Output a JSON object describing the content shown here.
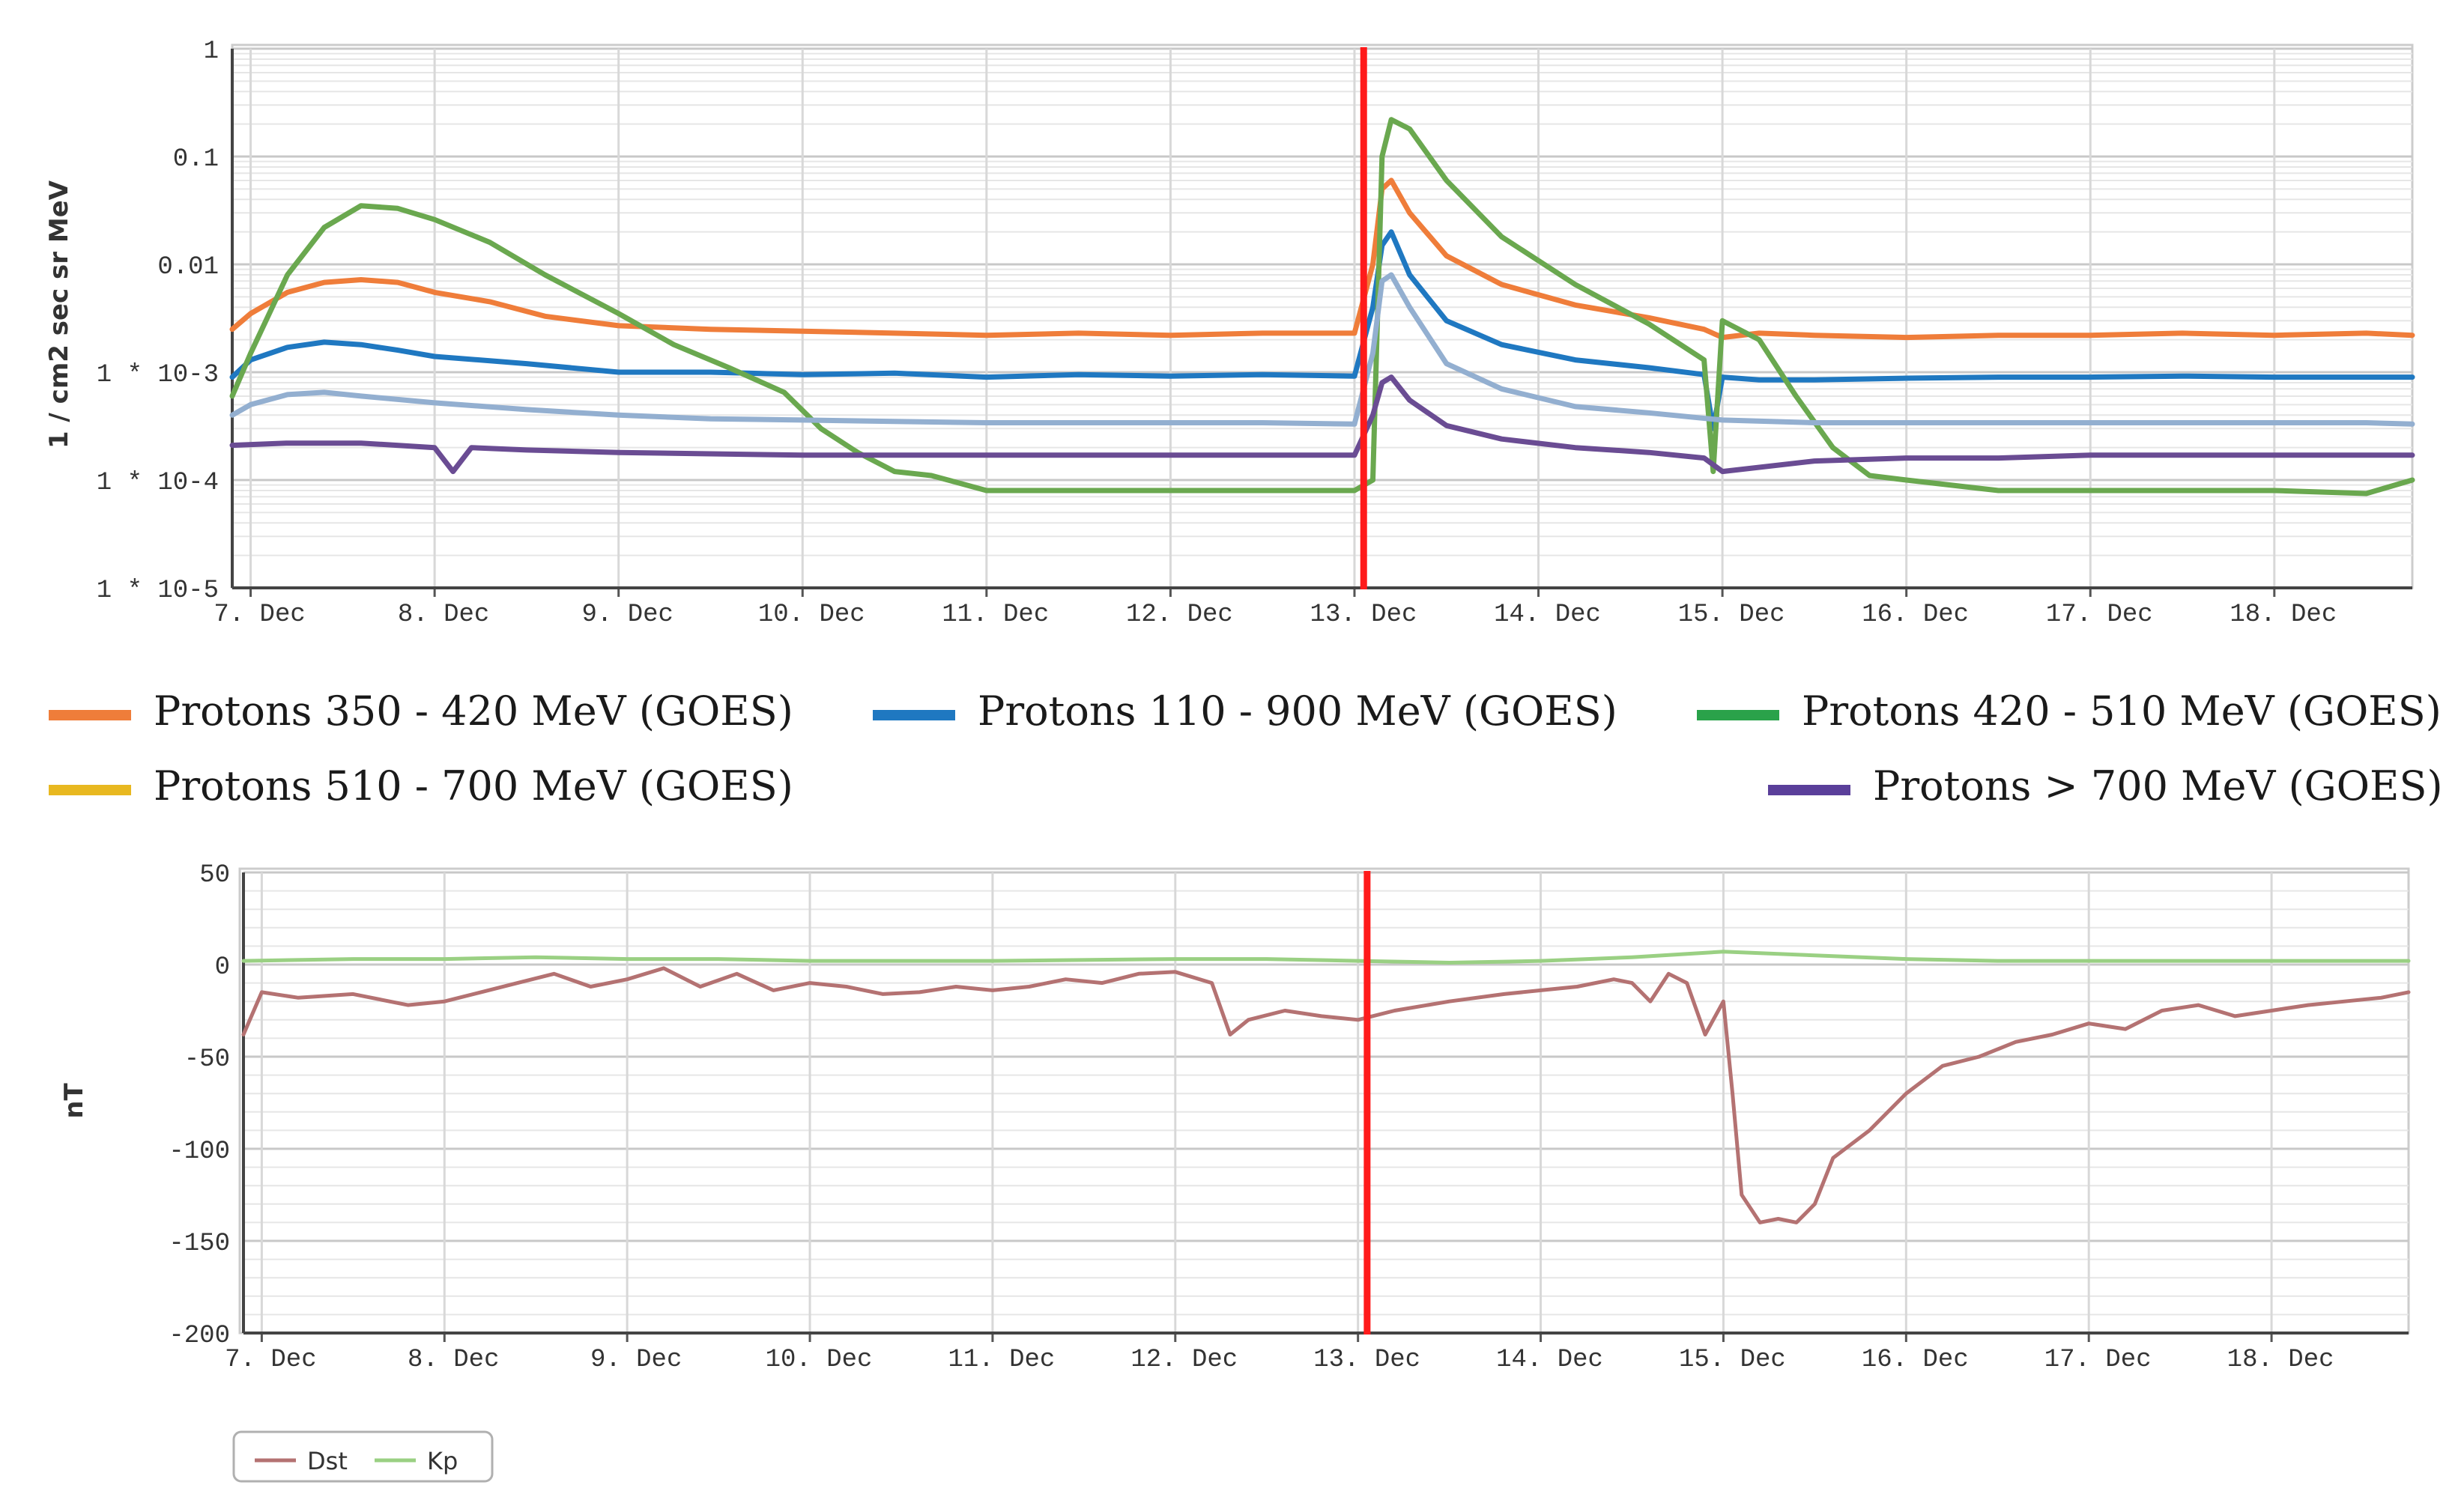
{
  "chart_data": [
    {
      "type": "line",
      "title": "",
      "ylabel": "1 / cm2 sec sr MeV",
      "y_scale": "log",
      "ylim": [
        1e-05,
        1
      ],
      "y_ticks": [
        "1",
        "0.1",
        "0.01",
        "1 * 10-3",
        "1 * 10-4",
        "1 * 10-5"
      ],
      "y_tick_values": [
        1,
        0.1,
        0.01,
        0.001,
        0.0001,
        1e-05
      ],
      "xlim": [
        6.9,
        18.75
      ],
      "x_ticks": [
        "7. Dec",
        "8. Dec",
        "9. Dec",
        "10. Dec",
        "11. Dec",
        "12. Dec",
        "13. Dec",
        "14. Dec",
        "15. Dec",
        "16. Dec",
        "17. Dec",
        "18. Dec"
      ],
      "x_tick_values": [
        7,
        8,
        9,
        10,
        11,
        12,
        13,
        14,
        15,
        16,
        17,
        18
      ],
      "marker_x": 13.05,
      "marker_color": "#ff1a1a",
      "legend_position": "bottom",
      "series": [
        {
          "name": "Protons 350 - 420 MeV (GOES)",
          "color": "#ef7d3a",
          "x": [
            6.9,
            7.0,
            7.2,
            7.4,
            7.6,
            7.8,
            8.0,
            8.3,
            8.6,
            9.0,
            9.5,
            10.0,
            10.5,
            11.0,
            11.5,
            12.0,
            12.5,
            13.0,
            13.1,
            13.15,
            13.2,
            13.3,
            13.5,
            13.8,
            14.2,
            14.6,
            14.9,
            15.0,
            15.2,
            15.5,
            16.0,
            16.5,
            17.0,
            17.5,
            18.0,
            18.5,
            18.75
          ],
          "y": [
            0.0025,
            0.0035,
            0.0055,
            0.0068,
            0.0072,
            0.0068,
            0.0055,
            0.0045,
            0.0033,
            0.0027,
            0.0025,
            0.0024,
            0.0023,
            0.0022,
            0.0023,
            0.0022,
            0.0023,
            0.0023,
            0.01,
            0.05,
            0.06,
            0.03,
            0.012,
            0.0065,
            0.0042,
            0.0032,
            0.0025,
            0.0021,
            0.0023,
            0.0022,
            0.0021,
            0.0022,
            0.0022,
            0.0023,
            0.0022,
            0.0023,
            0.0022
          ]
        },
        {
          "name": "Protons 110 - 900 MeV (GOES)",
          "color": "#1f78c1",
          "x": [
            6.9,
            7.0,
            7.2,
            7.4,
            7.6,
            7.8,
            8.0,
            8.5,
            9.0,
            9.5,
            10.0,
            10.5,
            11.0,
            11.5,
            12.0,
            12.5,
            13.0,
            13.1,
            13.15,
            13.2,
            13.3,
            13.5,
            13.8,
            14.2,
            14.6,
            14.9,
            14.95,
            15.0,
            15.2,
            15.5,
            16.0,
            16.5,
            17.0,
            17.5,
            18.0,
            18.5,
            18.75
          ],
          "y": [
            0.0009,
            0.0013,
            0.0017,
            0.0019,
            0.0018,
            0.0016,
            0.0014,
            0.0012,
            0.001,
            0.001,
            0.00095,
            0.00098,
            0.0009,
            0.00095,
            0.00092,
            0.00095,
            0.00092,
            0.004,
            0.015,
            0.02,
            0.008,
            0.003,
            0.0018,
            0.0013,
            0.0011,
            0.00095,
            0.0003,
            0.0009,
            0.00085,
            0.00085,
            0.00088,
            0.0009,
            0.0009,
            0.00092,
            0.0009,
            0.0009,
            0.0009
          ]
        },
        {
          "name": "Protons 420 - 510 MeV (GOES)",
          "color": "#6aa84f",
          "x": [
            6.9,
            7.0,
            7.2,
            7.4,
            7.6,
            7.8,
            8.0,
            8.3,
            8.6,
            9.0,
            9.3,
            9.6,
            9.9,
            10.1,
            10.3,
            10.5,
            10.7,
            11.0,
            11.5,
            12.0,
            12.5,
            13.0,
            13.1,
            13.15,
            13.2,
            13.3,
            13.5,
            13.8,
            14.2,
            14.6,
            14.9,
            14.95,
            15.0,
            15.2,
            15.4,
            15.6,
            15.8,
            16.0,
            16.5,
            17.0,
            17.5,
            18.0,
            18.5,
            18.75
          ],
          "y": [
            0.0006,
            0.0015,
            0.008,
            0.022,
            0.035,
            0.033,
            0.026,
            0.016,
            0.008,
            0.0035,
            0.0018,
            0.0011,
            0.00065,
            0.0003,
            0.00018,
            0.00012,
            0.00011,
            8e-05,
            8e-05,
            8e-05,
            8e-05,
            8e-05,
            0.0001,
            0.1,
            0.22,
            0.18,
            0.06,
            0.018,
            0.0065,
            0.0028,
            0.0013,
            0.00012,
            0.003,
            0.002,
            0.0006,
            0.0002,
            0.00011,
            0.0001,
            8e-05,
            8e-05,
            8e-05,
            8e-05,
            7.5e-05,
            0.0001
          ]
        },
        {
          "name": "Protons 510 - 700 MeV (GOES)",
          "color": "#93afd0",
          "x": [
            6.9,
            7.0,
            7.2,
            7.4,
            7.6,
            8.0,
            8.5,
            9.0,
            9.5,
            10.0,
            10.5,
            11.0,
            11.5,
            12.0,
            12.5,
            13.0,
            13.1,
            13.15,
            13.2,
            13.3,
            13.5,
            13.8,
            14.2,
            14.6,
            15.0,
            15.5,
            16.0,
            16.5,
            17.0,
            17.5,
            18.0,
            18.5,
            18.75
          ],
          "y": [
            0.0004,
            0.0005,
            0.00062,
            0.00065,
            0.0006,
            0.00052,
            0.00045,
            0.0004,
            0.00037,
            0.00036,
            0.00035,
            0.00034,
            0.00034,
            0.00034,
            0.00034,
            0.00033,
            0.0015,
            0.007,
            0.008,
            0.004,
            0.0012,
            0.0007,
            0.00048,
            0.00042,
            0.00036,
            0.00034,
            0.00034,
            0.00034,
            0.00034,
            0.00034,
            0.00034,
            0.00034,
            0.00033
          ]
        },
        {
          "name": "Protons > 700 MeV (GOES)",
          "color": "#6a4c93",
          "x": [
            6.9,
            7.2,
            7.6,
            8.0,
            8.1,
            8.2,
            8.5,
            9.0,
            10.0,
            11.0,
            12.0,
            13.0,
            13.1,
            13.15,
            13.2,
            13.3,
            13.5,
            13.8,
            14.2,
            14.6,
            14.9,
            15.0,
            15.5,
            16.0,
            16.5,
            17.0,
            17.5,
            18.0,
            18.5,
            18.75
          ],
          "y": [
            0.00021,
            0.00022,
            0.00022,
            0.0002,
            0.00012,
            0.0002,
            0.00019,
            0.00018,
            0.00017,
            0.00017,
            0.00017,
            0.00017,
            0.0004,
            0.0008,
            0.0009,
            0.00055,
            0.00032,
            0.00024,
            0.0002,
            0.00018,
            0.00016,
            0.00012,
            0.00015,
            0.00016,
            0.00016,
            0.00017,
            0.00017,
            0.00017,
            0.00017,
            0.00017
          ]
        }
      ]
    },
    {
      "type": "line",
      "title": "",
      "ylabel": "nT",
      "ylim": [
        -200,
        50
      ],
      "y_ticks": [
        "50",
        "0",
        "-50",
        "-100",
        "-150",
        "-200"
      ],
      "y_tick_values": [
        50,
        0,
        -50,
        -100,
        -150,
        -200
      ],
      "xlim": [
        6.9,
        18.75
      ],
      "x_ticks": [
        "7. Dec",
        "8. Dec",
        "9. Dec",
        "10. Dec",
        "11. Dec",
        "12. Dec",
        "13. Dec",
        "14. Dec",
        "15. Dec",
        "16. Dec",
        "17. Dec",
        "18. Dec"
      ],
      "x_tick_values": [
        7,
        8,
        9,
        10,
        11,
        12,
        13,
        14,
        15,
        16,
        17,
        18
      ],
      "marker_x": 13.05,
      "marker_color": "#ff1a1a",
      "legend_position": "bottom-left",
      "series": [
        {
          "name": "Dst",
          "color": "#b47272",
          "x": [
            6.9,
            7.0,
            7.2,
            7.5,
            7.8,
            8.0,
            8.2,
            8.4,
            8.6,
            8.8,
            9.0,
            9.2,
            9.4,
            9.6,
            9.8,
            10.0,
            10.2,
            10.4,
            10.6,
            10.8,
            11.0,
            11.2,
            11.4,
            11.6,
            11.8,
            12.0,
            12.2,
            12.3,
            12.4,
            12.6,
            12.8,
            13.0,
            13.2,
            13.5,
            13.8,
            14.0,
            14.2,
            14.4,
            14.5,
            14.6,
            14.7,
            14.8,
            14.9,
            15.0,
            15.05,
            15.1,
            15.2,
            15.3,
            15.4,
            15.5,
            15.6,
            15.8,
            16.0,
            16.2,
            16.4,
            16.6,
            16.8,
            17.0,
            17.2,
            17.4,
            17.6,
            17.8,
            18.0,
            18.2,
            18.4,
            18.6,
            18.75
          ],
          "y": [
            -38,
            -15,
            -18,
            -16,
            -22,
            -20,
            -15,
            -10,
            -5,
            -12,
            -8,
            -2,
            -12,
            -5,
            -14,
            -10,
            -12,
            -16,
            -15,
            -12,
            -14,
            -12,
            -8,
            -10,
            -5,
            -4,
            -10,
            -38,
            -30,
            -25,
            -28,
            -30,
            -25,
            -20,
            -16,
            -14,
            -12,
            -8,
            -10,
            -20,
            -5,
            -10,
            -38,
            -20,
            -70,
            -125,
            -140,
            -138,
            -140,
            -130,
            -105,
            -90,
            -70,
            -55,
            -50,
            -42,
            -38,
            -32,
            -35,
            -25,
            -22,
            -28,
            -25,
            -22,
            -20,
            -18,
            -15
          ]
        },
        {
          "name": "Kp",
          "color": "#9ad083",
          "x": [
            6.9,
            7.5,
            8.0,
            8.5,
            9.0,
            9.5,
            10.0,
            11.0,
            12.0,
            12.5,
            13.0,
            13.5,
            14.0,
            14.5,
            15.0,
            15.5,
            16.0,
            16.5,
            17.0,
            17.5,
            18.0,
            18.75
          ],
          "y": [
            2,
            3,
            3,
            4,
            3,
            3,
            2,
            2,
            3,
            3,
            2,
            1,
            2,
            4,
            7,
            5,
            3,
            2,
            2,
            2,
            2,
            2
          ]
        }
      ]
    }
  ]
}
